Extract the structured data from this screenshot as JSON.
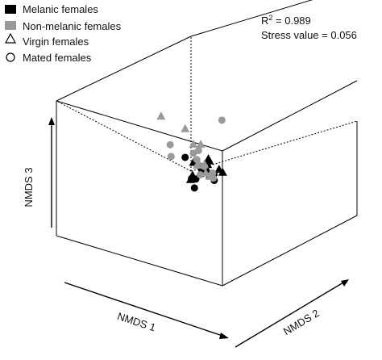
{
  "chart_data": {
    "type": "scatter",
    "projection": "3d",
    "title": "",
    "axis_labels": {
      "x": "NMDS 1",
      "y": "NMDS 2",
      "z": "NMDS 3"
    },
    "annotations": {
      "r2_prefix": "R",
      "r2_sup": "2",
      "r2_value": " = 0.989",
      "stress": "Stress value = 0.056"
    },
    "legend": {
      "placement": "top-left",
      "entries": [
        {
          "label": "Melanic females",
          "symbol": "filled-square",
          "color": "#000000"
        },
        {
          "label": "Non-melanic females",
          "symbol": "filled-square",
          "color": "#999999"
        },
        {
          "label": "Virgin females",
          "symbol": "open-triangle",
          "color": "#000000"
        },
        {
          "label": "Mated females",
          "symbol": "open-circle",
          "color": "#000000"
        }
      ]
    },
    "colors": {
      "melanic": "#000000",
      "non_melanic": "#9a9a9a"
    },
    "series": [
      {
        "name": "Melanic females",
        "group": "melanic",
        "points": [
          {
            "x": 0.02,
            "y": 0.0,
            "z": 0.08,
            "status": "virgin"
          },
          {
            "x": 0.0,
            "y": -0.04,
            "z": 0.02,
            "status": "virgin"
          },
          {
            "x": -0.12,
            "y": 0.05,
            "z": 0.0,
            "status": "virgin"
          },
          {
            "x": 0.06,
            "y": 0.07,
            "z": -0.03,
            "status": "virgin"
          },
          {
            "x": -0.03,
            "y": -0.05,
            "z": -0.05,
            "status": "virgin"
          },
          {
            "x": 0.1,
            "y": -0.06,
            "z": -0.08,
            "status": "virgin"
          },
          {
            "x": 0.16,
            "y": -0.04,
            "z": -0.09,
            "status": "virgin"
          },
          {
            "x": 0.12,
            "y": 0.1,
            "z": -0.07,
            "status": "virgin"
          },
          {
            "x": 0.04,
            "y": 0.26,
            "z": -0.02,
            "status": "virgin"
          },
          {
            "x": 0.08,
            "y": 0.34,
            "z": -0.03,
            "status": "virgin"
          },
          {
            "x": -0.26,
            "y": 0.0,
            "z": 0.0,
            "status": "mated"
          },
          {
            "x": 0.0,
            "y": 0.08,
            "z": 0.0,
            "status": "mated"
          },
          {
            "x": 0.02,
            "y": 0.1,
            "z": -0.03,
            "status": "mated"
          },
          {
            "x": 0.06,
            "y": 0.14,
            "z": -0.05,
            "status": "mated"
          },
          {
            "x": 0.12,
            "y": 0.04,
            "z": -0.09,
            "status": "mated"
          },
          {
            "x": 0.14,
            "y": 0.08,
            "z": -0.09,
            "status": "mated"
          },
          {
            "x": 0.22,
            "y": 0.16,
            "z": -0.08,
            "status": "mated"
          },
          {
            "x": 0.08,
            "y": 0.26,
            "z": -0.06,
            "status": "mated"
          },
          {
            "x": 0.06,
            "y": 0.3,
            "z": -0.04,
            "status": "mated"
          },
          {
            "x": 0.16,
            "y": 0.38,
            "z": -0.1,
            "status": "mated"
          }
        ]
      },
      {
        "name": "Non-melanic females",
        "group": "non_melanic",
        "points": [
          {
            "x": -0.55,
            "y": 0.0,
            "z": 0.5,
            "status": "virgin"
          },
          {
            "x": -0.3,
            "y": -0.05,
            "z": 0.38,
            "status": "virgin"
          },
          {
            "x": -0.16,
            "y": 0.0,
            "z": 0.23,
            "status": "virgin"
          },
          {
            "x": -0.12,
            "y": -0.06,
            "z": 0.21,
            "status": "virgin"
          },
          {
            "x": -0.06,
            "y": -0.04,
            "z": -0.05,
            "status": "virgin"
          },
          {
            "x": -0.1,
            "y": 0.0,
            "z": -0.02,
            "status": "virgin"
          },
          {
            "x": -0.05,
            "y": 0.08,
            "z": 0.0,
            "status": "virgin"
          },
          {
            "x": 0.1,
            "y": 0.08,
            "z": -0.11,
            "status": "virgin"
          },
          {
            "x": 0.15,
            "y": 0.2,
            "z": 0.02,
            "status": "virgin"
          },
          {
            "x": -0.06,
            "y": -0.3,
            "z": 0.47,
            "status": "mated"
          },
          {
            "x": -0.44,
            "y": 0.0,
            "z": 0.12,
            "status": "mated"
          },
          {
            "x": -0.38,
            "y": 0.06,
            "z": 0.0,
            "status": "mated"
          },
          {
            "x": -0.08,
            "y": 0.1,
            "z": 0.18,
            "status": "mated"
          },
          {
            "x": -0.05,
            "y": 0.06,
            "z": 0.21,
            "status": "mated"
          },
          {
            "x": -0.12,
            "y": 0.0,
            "z": 0.02,
            "status": "mated"
          },
          {
            "x": 0.02,
            "y": 0.06,
            "z": 0.0,
            "status": "mated"
          },
          {
            "x": 0.12,
            "y": 0.06,
            "z": -0.06,
            "status": "mated"
          },
          {
            "x": 0.16,
            "y": 0.1,
            "z": -0.1,
            "status": "mated"
          },
          {
            "x": 0.1,
            "y": 0.22,
            "z": -0.01,
            "status": "mated"
          },
          {
            "x": 0.16,
            "y": 0.14,
            "z": -0.04,
            "status": "mated"
          }
        ]
      }
    ]
  }
}
